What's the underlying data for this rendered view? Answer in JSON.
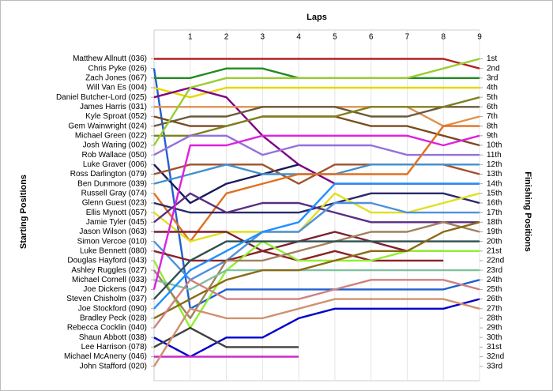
{
  "chart_data": {
    "type": "line",
    "title": "Laps",
    "ylabel": "Starting Positions",
    "y2label": "Finishing Positions",
    "x": [
      0,
      1,
      2,
      3,
      4,
      5,
      6,
      7,
      8,
      9
    ],
    "xlim": [
      0,
      9
    ],
    "xticks": [
      1,
      2,
      3,
      4,
      5,
      6,
      7,
      8,
      9
    ],
    "ylim": [
      -2,
      34.5
    ],
    "y_inverted": true,
    "grid": true,
    "yticks": [
      {
        "value": 1,
        "label": "Matthew Allnutt (036)"
      },
      {
        "value": 2,
        "label": "Chris Pyke (026)"
      },
      {
        "value": 3,
        "label": "Zach Jones (067)"
      },
      {
        "value": 4,
        "label": "Will Van Es (004)"
      },
      {
        "value": 5,
        "label": "Daniel Butcher-Lord (025)"
      },
      {
        "value": 6,
        "label": "James Harris (031)"
      },
      {
        "value": 7,
        "label": "Kyle Sproat (052)"
      },
      {
        "value": 8,
        "label": "Gem Wainwright (024)"
      },
      {
        "value": 9,
        "label": "Michael Green (022)"
      },
      {
        "value": 10,
        "label": "Josh Waring (002)"
      },
      {
        "value": 11,
        "label": "Rob Wallace (050)"
      },
      {
        "value": 12,
        "label": "Luke Graver (006)"
      },
      {
        "value": 13,
        "label": "Ross Darlington (079)"
      },
      {
        "value": 14,
        "label": "Ben Dunmore (039)"
      },
      {
        "value": 15,
        "label": "Russell Gray (074)"
      },
      {
        "value": 16,
        "label": "Glenn Guest (023)"
      },
      {
        "value": 17,
        "label": "Ellis Mynott (057)"
      },
      {
        "value": 18,
        "label": "Jamie Tyler (045)"
      },
      {
        "value": 19,
        "label": "Jason Wilson (063)"
      },
      {
        "value": 20,
        "label": "Simon Vercoe (010)"
      },
      {
        "value": 21,
        "label": "Luke Bennett (080)"
      },
      {
        "value": 22,
        "label": "Douglas Hayford (043)"
      },
      {
        "value": 23,
        "label": "Ashley Ruggles (027)"
      },
      {
        "value": 24,
        "label": "Michael Cornell (033)"
      },
      {
        "value": 25,
        "label": "Joe Dickens (047)"
      },
      {
        "value": 26,
        "label": "Steven Chisholm (037)"
      },
      {
        "value": 27,
        "label": "Joe Stockford (090)"
      },
      {
        "value": 28,
        "label": "Bradley Peck (028)"
      },
      {
        "value": 29,
        "label": "Rebecca Cocklin (040)"
      },
      {
        "value": 30,
        "label": "Shaun Abbott (038)"
      },
      {
        "value": 31,
        "label": "Lee Harrison (078)"
      },
      {
        "value": 32,
        "label": "Michael McAneny (046)"
      },
      {
        "value": 33,
        "label": "John Stafford (020)"
      }
    ],
    "y2ticks": [
      {
        "value": 1,
        "label": "1st"
      },
      {
        "value": 2,
        "label": "2nd"
      },
      {
        "value": 3,
        "label": "3rd"
      },
      {
        "value": 4,
        "label": "4th"
      },
      {
        "value": 5,
        "label": "5th"
      },
      {
        "value": 6,
        "label": "6th"
      },
      {
        "value": 7,
        "label": "7th"
      },
      {
        "value": 8,
        "label": "8th"
      },
      {
        "value": 9,
        "label": "9th"
      },
      {
        "value": 10,
        "label": "10th"
      },
      {
        "value": 11,
        "label": "11th"
      },
      {
        "value": 12,
        "label": "12th"
      },
      {
        "value": 13,
        "label": "13th"
      },
      {
        "value": 14,
        "label": "14th"
      },
      {
        "value": 15,
        "label": "15th"
      },
      {
        "value": 16,
        "label": "16th"
      },
      {
        "value": 17,
        "label": "17th"
      },
      {
        "value": 18,
        "label": "18th"
      },
      {
        "value": 19,
        "label": "19th"
      },
      {
        "value": 20,
        "label": "20th"
      },
      {
        "value": 21,
        "label": "21st"
      },
      {
        "value": 22,
        "label": "22nd"
      },
      {
        "value": 23,
        "label": "23rd"
      },
      {
        "value": 24,
        "label": "24th"
      },
      {
        "value": 25,
        "label": "25th"
      },
      {
        "value": 26,
        "label": "26th"
      },
      {
        "value": 27,
        "label": "27th"
      },
      {
        "value": 28,
        "label": "28th"
      },
      {
        "value": 29,
        "label": "29th"
      },
      {
        "value": 30,
        "label": "30th"
      },
      {
        "value": 31,
        "label": "31st"
      },
      {
        "value": 32,
        "label": "32nd"
      },
      {
        "value": 33,
        "label": "33rd"
      }
    ],
    "series": [
      {
        "color": "#b22222",
        "values": [
          1,
          1,
          1,
          1,
          1,
          1,
          1,
          1,
          1,
          2
        ]
      },
      {
        "color": "#2060d0",
        "values": [
          2,
          27,
          25,
          25,
          25,
          25,
          25,
          25,
          25,
          24
        ]
      },
      {
        "color": "#228b22",
        "values": [
          3,
          3,
          2,
          2,
          3,
          3,
          3,
          3,
          3,
          3
        ]
      },
      {
        "color": "#e6d800",
        "values": [
          4,
          5,
          4,
          4,
          4,
          4,
          4,
          4,
          4,
          4
        ]
      },
      {
        "color": "#800080",
        "values": [
          5,
          4,
          5,
          9,
          12,
          14,
          14,
          14,
          14,
          14
        ]
      },
      {
        "color": "#e09050",
        "values": [
          6,
          6,
          6,
          6,
          6,
          6,
          6,
          6,
          8,
          7
        ]
      },
      {
        "color": "#7a4a20",
        "values": [
          7,
          8,
          8,
          7,
          7,
          7,
          8,
          8,
          9,
          10
        ]
      },
      {
        "color": "#6b5a3a",
        "values": [
          8,
          7,
          7,
          6,
          6,
          6,
          7,
          7,
          6,
          6
        ]
      },
      {
        "color": "#808020",
        "values": [
          9,
          9,
          8,
          7,
          7,
          7,
          6,
          6,
          6,
          5
        ]
      },
      {
        "color": "#9acd32",
        "values": [
          10,
          4,
          3,
          3,
          3,
          3,
          3,
          3,
          2,
          1
        ]
      },
      {
        "color": "#9370db",
        "values": [
          11,
          9,
          9,
          11,
          10,
          10,
          10,
          11,
          11,
          11
        ]
      },
      {
        "color": "#1a1a5a",
        "values": [
          12,
          16,
          14,
          13,
          12,
          null,
          null,
          null,
          null,
          null
        ]
      },
      {
        "color": "#a0522d",
        "values": [
          13,
          12,
          12,
          12,
          14,
          12,
          12,
          12,
          12,
          13
        ]
      },
      {
        "color": "#4090d0",
        "values": [
          14,
          13,
          12,
          13,
          13,
          13,
          12,
          12,
          12,
          12
        ]
      },
      {
        "color": "#e07020",
        "values": [
          15,
          20,
          15,
          14,
          13,
          13,
          13,
          13,
          8,
          8
        ]
      },
      {
        "color": "#2a2a6a",
        "values": [
          16,
          17,
          17,
          17,
          17,
          16,
          15,
          15,
          15,
          16
        ]
      },
      {
        "color": "#e0e020",
        "values": [
          17,
          20,
          19,
          19,
          19,
          15,
          17,
          17,
          16,
          15
        ]
      },
      {
        "color": "#5a2d82",
        "values": [
          18,
          15,
          17,
          16,
          16,
          17,
          18,
          18,
          18,
          18
        ]
      },
      {
        "color": "#7a2030",
        "values": [
          19,
          19,
          19,
          21,
          20,
          19,
          20,
          21,
          21,
          null
        ]
      },
      {
        "color": "#5090e0",
        "values": [
          20,
          24,
          22,
          19,
          19,
          16,
          16,
          17,
          17,
          17
        ]
      },
      {
        "color": "#8b2222",
        "values": [
          21,
          22,
          22,
          21,
          22,
          21,
          22,
          22,
          22,
          null
        ]
      },
      {
        "color": "#90ee30",
        "values": [
          22,
          29,
          23,
          20,
          22,
          22,
          22,
          21,
          21,
          21
        ]
      },
      {
        "color": "#a08060",
        "values": [
          23,
          28,
          22,
          22,
          21,
          20,
          19,
          19,
          18,
          19
        ]
      },
      {
        "color": "#80c0a0",
        "values": [
          24,
          25,
          23,
          23,
          23,
          23,
          23,
          23,
          23,
          23
        ]
      },
      {
        "color": "#e020e0",
        "values": [
          25,
          10,
          10,
          9,
          9,
          9,
          9,
          9,
          10,
          9
        ]
      },
      {
        "color": "#2f4f4f",
        "values": [
          26,
          22,
          20,
          20,
          20,
          20,
          20,
          20,
          20,
          20
        ]
      },
      {
        "color": "#1e90ff",
        "values": [
          27,
          23,
          21,
          19,
          18,
          14,
          14,
          14,
          14,
          14
        ]
      },
      {
        "color": "#8b6914",
        "values": [
          28,
          26,
          24,
          23,
          23,
          22,
          21,
          21,
          19,
          18
        ]
      },
      {
        "color": "#d08080",
        "values": [
          29,
          24,
          26,
          26,
          26,
          25,
          24,
          24,
          24,
          25
        ]
      },
      {
        "color": "#0000cd",
        "values": [
          30,
          32,
          30,
          30,
          28,
          27,
          27,
          27,
          27,
          26
        ]
      },
      {
        "color": "#404040",
        "values": [
          31,
          29,
          31,
          31,
          31,
          null,
          null,
          null,
          null,
          null
        ]
      },
      {
        "color": "#cc22cc",
        "values": [
          32,
          32,
          32,
          32,
          32,
          null,
          null,
          null,
          null,
          null
        ]
      },
      {
        "color": "#d09070",
        "values": [
          33,
          27,
          28,
          28,
          27,
          26,
          26,
          26,
          26,
          27
        ]
      }
    ]
  }
}
